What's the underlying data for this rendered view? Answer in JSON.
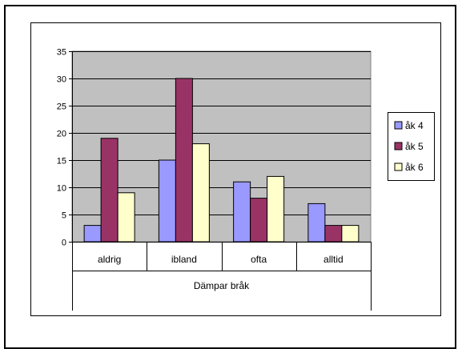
{
  "chart_data": {
    "type": "bar",
    "title": "",
    "xlabel": "Dämpar bråk",
    "ylabel": "",
    "categories": [
      "aldrig",
      "ibland",
      "ofta",
      "alltid"
    ],
    "series": [
      {
        "name": "åk 4",
        "values": [
          3,
          15,
          11,
          7
        ],
        "color": "#9999FF"
      },
      {
        "name": "åk 5",
        "values": [
          19,
          30,
          8,
          3
        ],
        "color": "#993366"
      },
      {
        "name": "åk 6",
        "values": [
          9,
          18,
          12,
          3
        ],
        "color": "#FFFFCC"
      }
    ],
    "ylim": [
      0,
      35
    ],
    "yticks": [
      0,
      5,
      10,
      15,
      20,
      25,
      30,
      35
    ],
    "grid": true,
    "legend_position": "right",
    "plot_background": "#C0C0C0"
  }
}
